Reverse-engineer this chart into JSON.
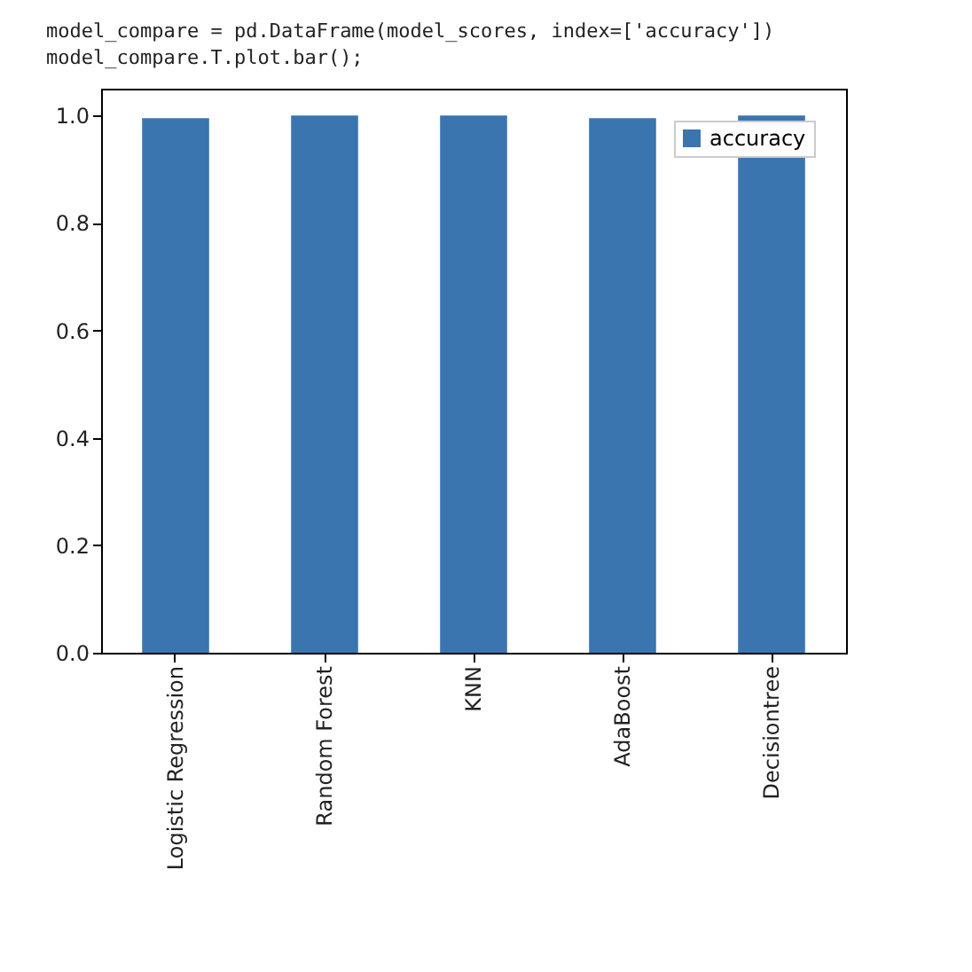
{
  "chart_data": {
    "type": "bar",
    "annotations": [
      "model_compare = pd.DataFrame(model_scores, index=['accuracy'])",
      "model_compare.T.plot.bar();"
    ],
    "categories": [
      "Logistic Regression",
      "Random Forest",
      "KNN",
      "AdaBoost",
      "Decisiontree"
    ],
    "series": [
      {
        "name": "accuracy",
        "color": "#3a75b0",
        "values": [
          0.995,
          1.0,
          1.0,
          0.995,
          1.0
        ]
      }
    ],
    "ylim": [
      0,
      1.05
    ],
    "yticks": [
      {
        "value": 0,
        "label": "0.0"
      },
      {
        "value": 0.2,
        "label": "0.2"
      },
      {
        "value": 0.4,
        "label": "0.4"
      },
      {
        "value": 0.6,
        "label": "0.6"
      },
      {
        "value": 0.8,
        "label": "0.8"
      },
      {
        "value": 1,
        "label": "1.0"
      }
    ],
    "grid": false,
    "legend": "top right"
  }
}
